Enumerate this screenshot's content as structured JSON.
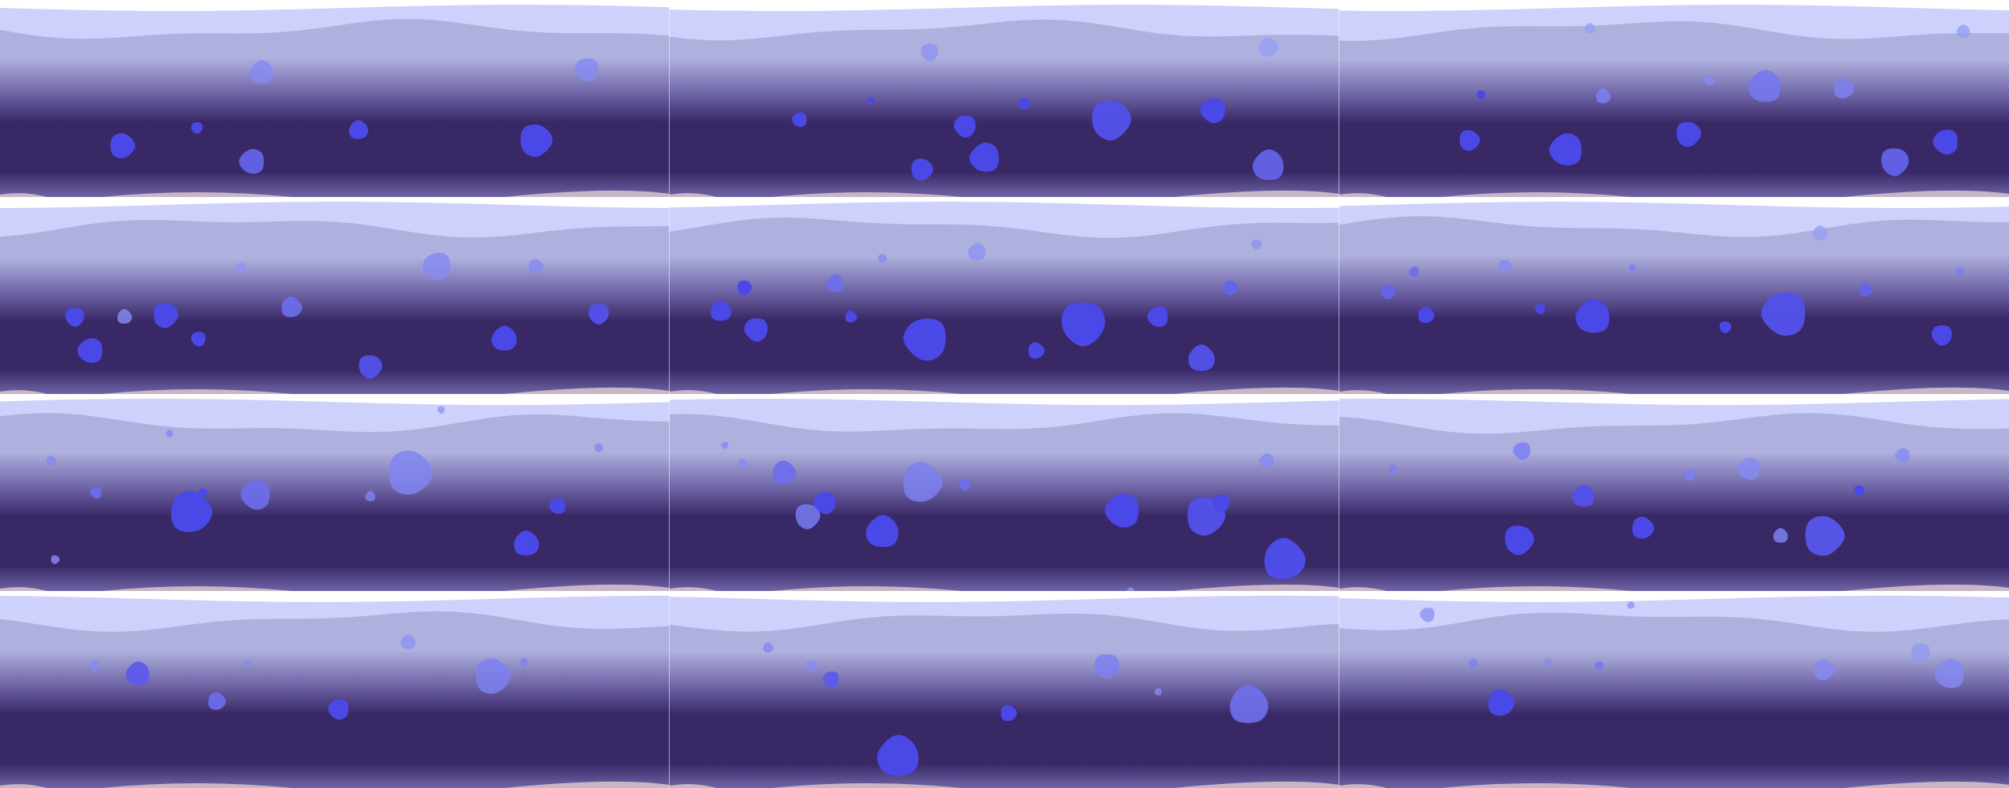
{
  "sheet": {
    "columns": 3,
    "rows": 4,
    "frames": [
      {
        "index": 1
      },
      {
        "index": 2
      },
      {
        "index": 3
      },
      {
        "index": 4
      },
      {
        "index": 5
      },
      {
        "index": 6
      },
      {
        "index": 7
      },
      {
        "index": 8
      },
      {
        "index": 9
      },
      {
        "index": 10
      },
      {
        "index": 11
      },
      {
        "index": 12
      }
    ]
  },
  "colors": {
    "background": "#ffffff",
    "surface_band": "#cdd1fb",
    "water_light": "#aeb0dd",
    "water_mid": "#6e64a6",
    "water_deep": "#392866",
    "sand": "#c8b6c4",
    "bubble_deep": "#4b48e8",
    "bubble_light": "#9ea6f6"
  }
}
